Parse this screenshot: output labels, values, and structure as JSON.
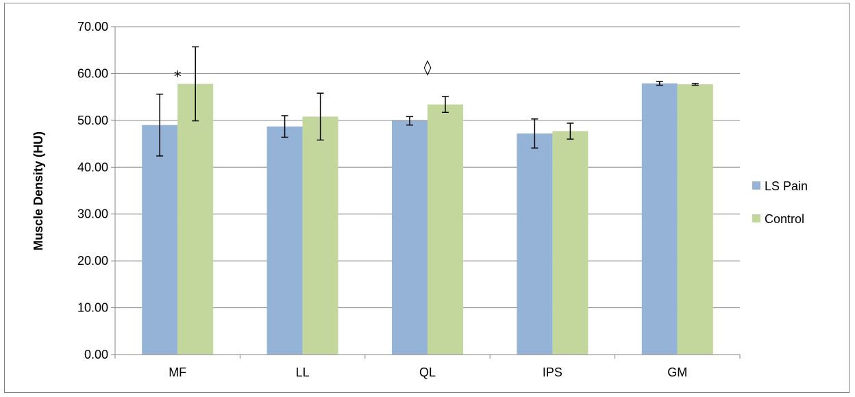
{
  "chart_data": {
    "type": "bar",
    "title": "",
    "xlabel": "",
    "ylabel": "Muscle Density (HU)",
    "ylim": [
      0,
      70
    ],
    "yticks": [
      "0.00",
      "10.00",
      "20.00",
      "30.00",
      "40.00",
      "50.00",
      "60.00",
      "70.00"
    ],
    "grid": true,
    "legend_position": "right",
    "categories": [
      "MF",
      "LL",
      "QL",
      "IPS",
      "GM"
    ],
    "series": [
      {
        "name": "LS Pain",
        "color": "#95B3D7",
        "values": [
          49.0,
          48.7,
          49.9,
          47.2,
          57.9
        ],
        "error": [
          6.6,
          2.3,
          0.9,
          3.1,
          0.4
        ]
      },
      {
        "name": "Control",
        "color": "#C3D69B",
        "values": [
          57.8,
          50.8,
          53.4,
          47.7,
          57.7
        ],
        "error": [
          7.9,
          5.0,
          1.7,
          1.7,
          0.2
        ]
      }
    ],
    "annotations": [
      {
        "text": "*",
        "category": "MF",
        "value": 60.0
      },
      {
        "text": "◊",
        "category": "QL",
        "value": 62.0
      }
    ]
  }
}
